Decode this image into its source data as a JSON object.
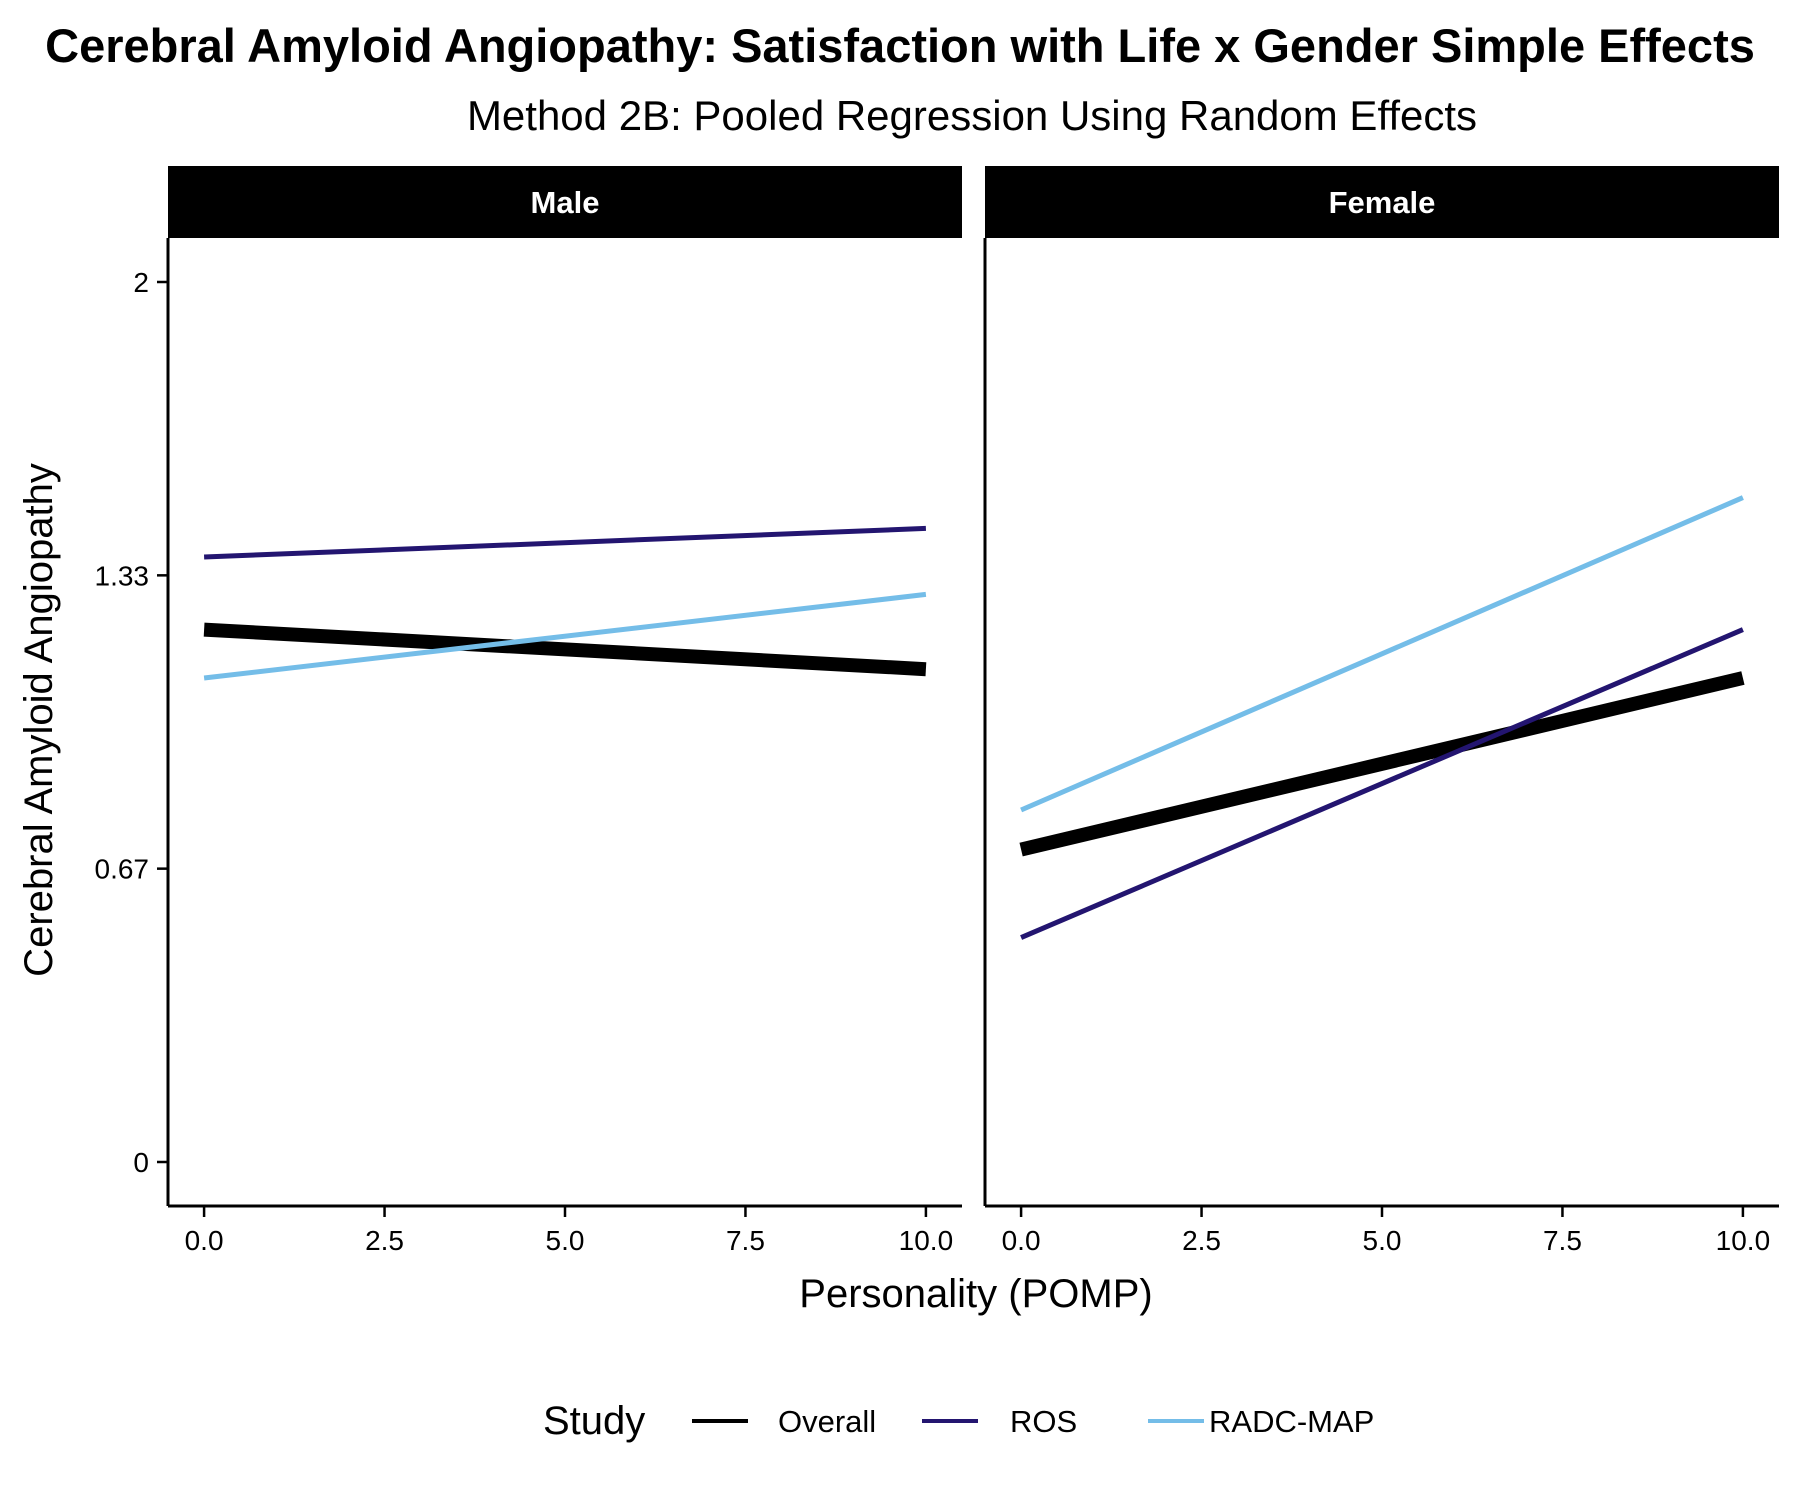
{
  "chart_data": {
    "type": "line",
    "title": "Cerebral Amyloid Angiopathy: Satisfaction with Life x Gender Simple Effects",
    "subtitle": "Method 2B: Pooled Regression Using Random Effects",
    "xlabel": "Personality (POMP)",
    "ylabel": "Cerebral Amyloid Angiopathy",
    "xlim": [
      -0.5,
      10.5
    ],
    "ylim": [
      -0.1,
      2.1
    ],
    "x_ticks": [
      0,
      2.5,
      5,
      7.5,
      10
    ],
    "x_tick_labels": [
      "0.0",
      "2.5",
      "5.0",
      "7.5",
      "10.0"
    ],
    "y_ticks": [
      0,
      0.6667,
      1.3333,
      2
    ],
    "y_tick_labels": [
      "0",
      "0.67",
      "1.33",
      "2"
    ],
    "grid": false,
    "legend": {
      "title": "Study",
      "position": "bottom",
      "entries": [
        "Overall",
        "ROS",
        "RADC-MAP"
      ]
    },
    "colors": {
      "Overall": "#000000",
      "ROS": "#231570",
      "RADC-MAP": "#74bde8",
      "strip_background": "#000000",
      "strip_text": "#ffffff"
    },
    "facets": [
      {
        "label": "Male",
        "series": [
          {
            "name": "Overall",
            "x": [
              0,
              10
            ],
            "y": [
              1.21,
              1.12
            ]
          },
          {
            "name": "ROS",
            "x": [
              0,
              10
            ],
            "y": [
              1.375,
              1.44
            ]
          },
          {
            "name": "RADC-MAP",
            "x": [
              0,
              10
            ],
            "y": [
              1.1,
              1.29
            ]
          }
        ]
      },
      {
        "label": "Female",
        "series": [
          {
            "name": "Overall",
            "x": [
              0,
              10
            ],
            "y": [
              0.71,
              1.1
            ]
          },
          {
            "name": "ROS",
            "x": [
              0,
              10
            ],
            "y": [
              0.51,
              1.21
            ]
          },
          {
            "name": "RADC-MAP",
            "x": [
              0,
              10
            ],
            "y": [
              0.8,
              1.51
            ]
          }
        ]
      }
    ]
  }
}
